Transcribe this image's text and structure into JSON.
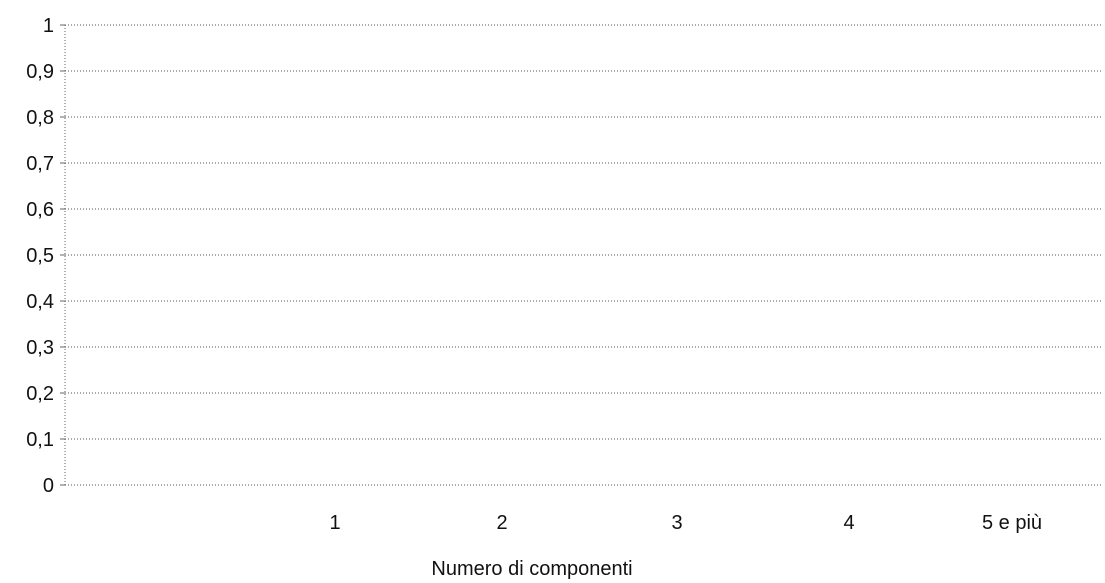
{
  "chart_data": {
    "type": "bar",
    "title": "",
    "xlabel": "Numero di componenti",
    "ylabel": "",
    "categories": [
      "1",
      "2",
      "3",
      "4",
      "5 e più"
    ],
    "series": [
      {
        "values": [
          0,
          0,
          0,
          0,
          0
        ]
      }
    ],
    "ylim": [
      0,
      1
    ],
    "yticks": [
      "0",
      "0,1",
      "0,2",
      "0,3",
      "0,4",
      "0,5",
      "0,6",
      "0,7",
      "0,8",
      "0,9",
      "1"
    ],
    "grid": true,
    "legend": "none",
    "colors": {
      "grid": "#555555",
      "axis": "#666666",
      "text": "#111111"
    }
  }
}
